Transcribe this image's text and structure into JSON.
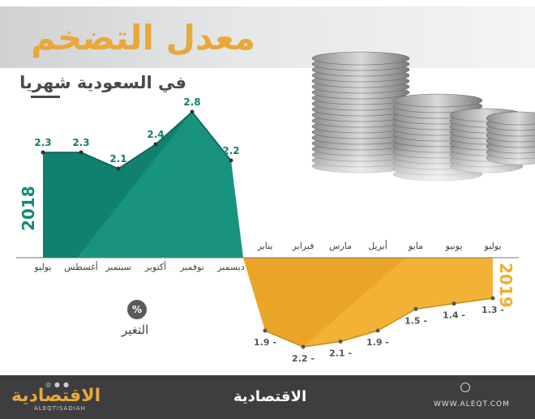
{
  "header": {
    "title": "معدل التضخم",
    "subtitle": "في السعودية شهريا"
  },
  "legend": {
    "percent_symbol": "%",
    "change_label": "التغير"
  },
  "footer": {
    "logo_left": "الاقتصادية",
    "logo_left_sub": "ALEQTISADIAH",
    "logo_mid": "الاقتصادية",
    "website": "WWW.ALEQT.COM"
  },
  "colors": {
    "series_2018": "#11806e",
    "series_2018_light": "#1fa38a",
    "series_2019": "#f2b236",
    "series_2019_dark": "#e39a1e",
    "title": "#e9a83a"
  },
  "chart_data": [
    {
      "type": "area",
      "year_label": "2018",
      "categories": [
        "يوليو",
        "أغسطس",
        "سبتمبر",
        "أكتوبر",
        "نوفمبر",
        "ديسمبر"
      ],
      "values": [
        2.3,
        2.3,
        2.1,
        2.4,
        2.8,
        2.2
      ],
      "value_labels": [
        "2.3",
        "2.3",
        "2.1",
        "2.4",
        "2.8",
        "2.2"
      ]
    },
    {
      "type": "area",
      "year_label": "2019",
      "categories": [
        "يناير",
        "فبراير",
        "مارس",
        "أبريل",
        "مايو",
        "يونيو",
        "يوليو"
      ],
      "values": [
        -1.9,
        -2.2,
        -2.1,
        -1.9,
        -1.5,
        -1.4,
        -1.3
      ],
      "value_labels": [
        "1.9 -",
        "2.2 -",
        "2.1 -",
        "1.9 -",
        "1.5 -",
        "1.4 -",
        "1.3 -"
      ]
    }
  ]
}
